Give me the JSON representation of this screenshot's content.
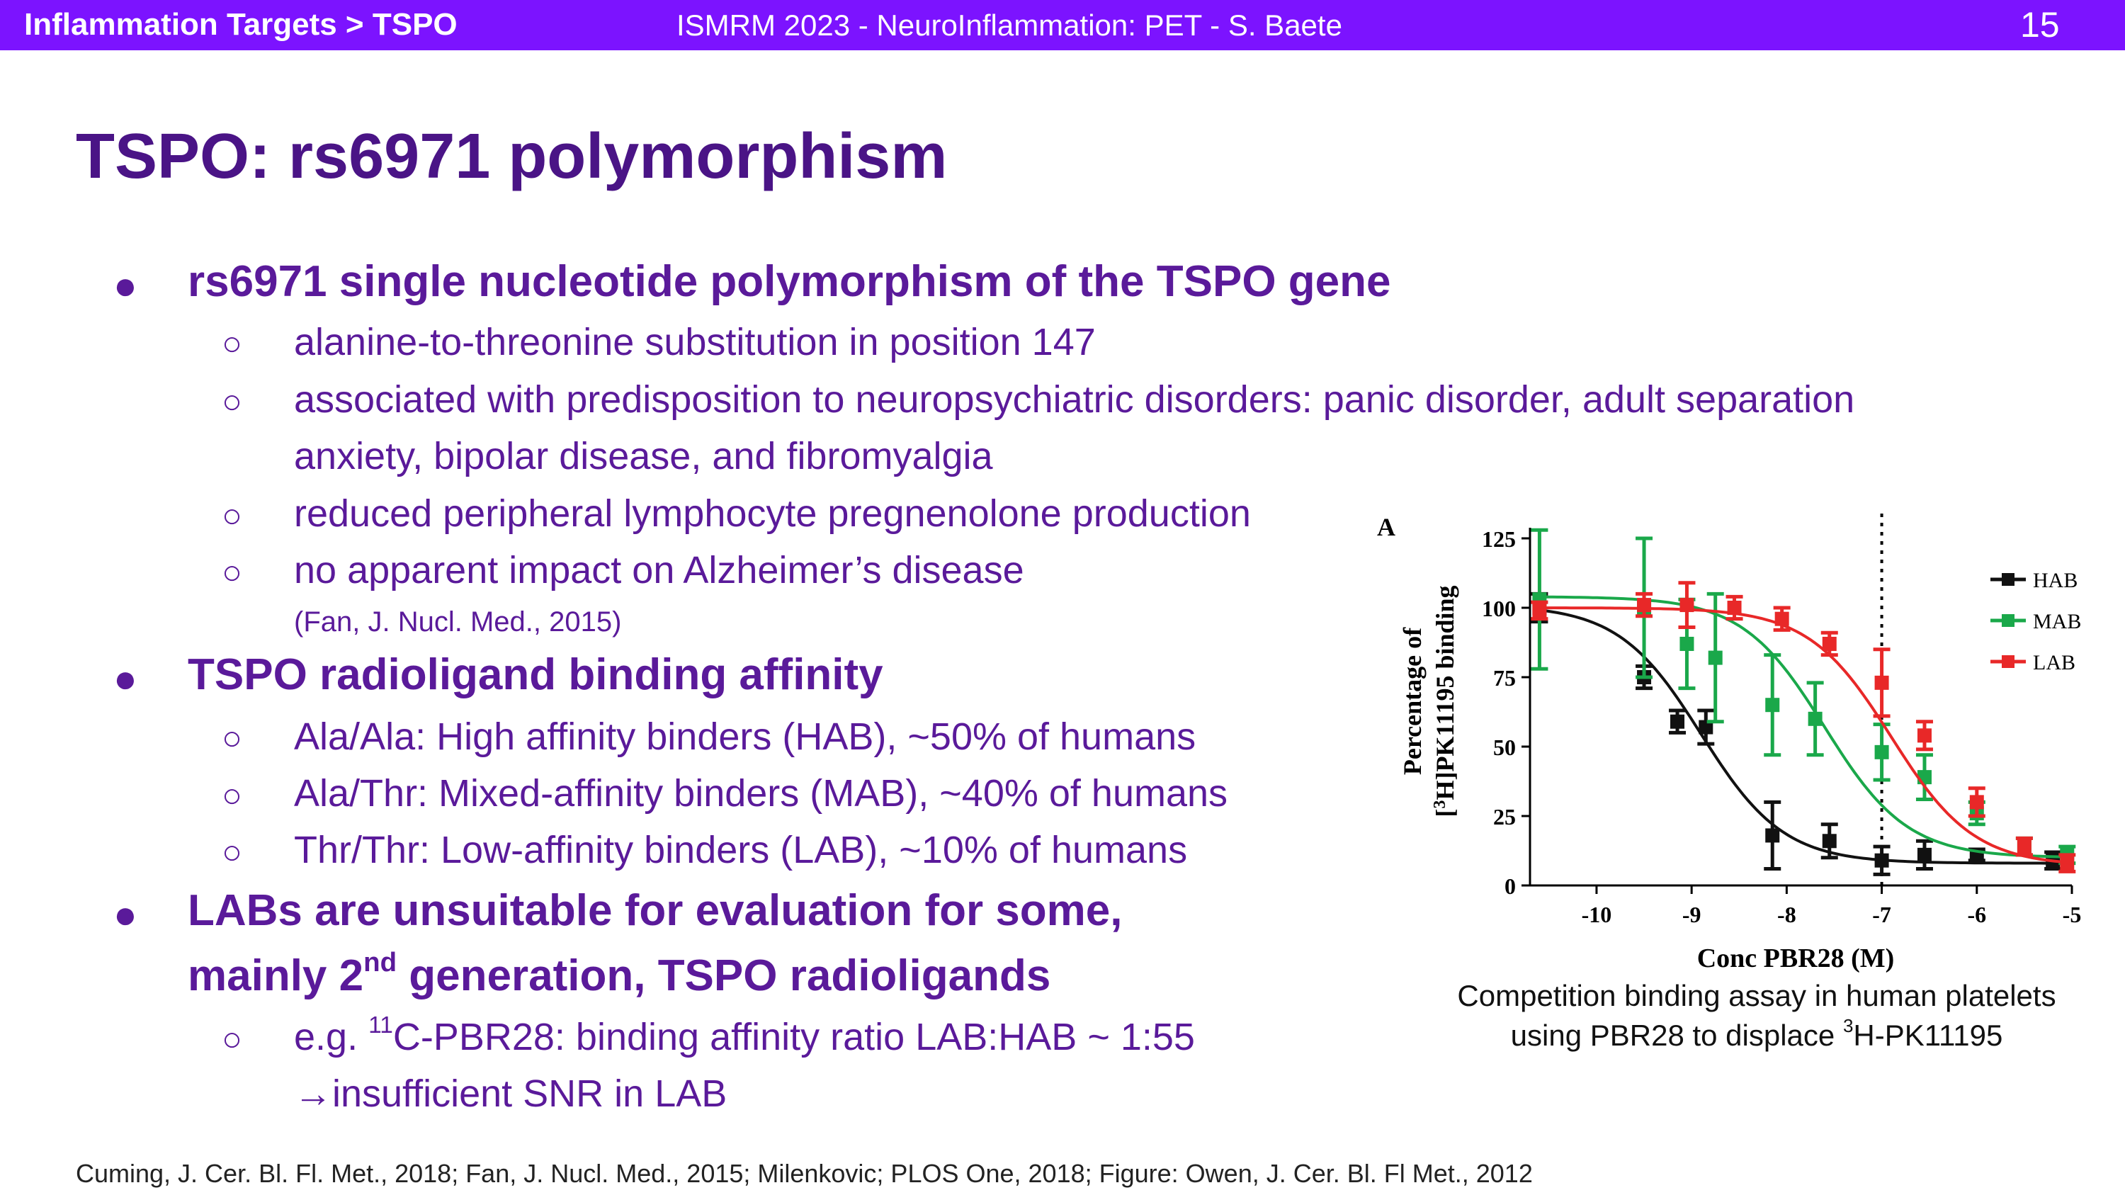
{
  "header": {
    "breadcrumb": "Inflammation Targets > TSPO",
    "conference": "ISMRM 2023 - NeuroInflammation: PET - S. Baete",
    "slide_number": "15"
  },
  "title": "TSPO: rs6971 polymorphism",
  "content": {
    "b1": "rs6971 single nucleotide polymorphism of the TSPO gene",
    "b1_s1": "alanine-to-threonine substitution in position 147",
    "b1_s2a": "associated with predisposition to neuropsychiatric disorders: panic disorder, adult separation",
    "b1_s2b": "anxiety, bipolar disease, and fibromyalgia",
    "b1_s3": "reduced peripheral lymphocyte pregnenolone production",
    "b1_s4": "no apparent impact on Alzheimer’s disease",
    "b1_ref": "(Fan, J. Nucl. Med., 2015)",
    "b2": "TSPO radioligand binding affinity",
    "b2_s1": "Ala/Ala:  High affinity binders (HAB), ~50% of humans",
    "b2_s2": "Ala/Thr:  Mixed-affinity binders (MAB), ~40% of humans",
    "b2_s3": "Thr/Thr:  Low-affinity binders (LAB), ~10% of humans",
    "b3_l1": "LABs are unsuitable for evaluation for some,",
    "b3_l2_pre": "mainly 2",
    "b3_l2_sup": "nd",
    "b3_l2_post": " generation, TSPO radioligands",
    "b3_s1_pre": "e.g. ",
    "b3_s1_sup": "11",
    "b3_s1_post": "C-PBR28: binding affinity ratio LAB:HAB ~ 1:55",
    "b3_s2": "→insufficient SNR in LAB"
  },
  "caption": {
    "line1": "Competition binding assay in human platelets",
    "line2_pre": "using PBR28 to displace ",
    "line2_sup": "3",
    "line2_post": "H-PK11195"
  },
  "footer": "Cuming, J. Cer. Bl. Fl. Met., 2018; Fan, J. Nucl. Med., 2015; Milenkovic; PLOS One, 2018; Figure: Owen, J. Cer. Bl. Fl Met., 2012",
  "chart_data": {
    "type": "scatter",
    "panel_label": "A",
    "xlabel": "Conc PBR28 (M)",
    "ylabel_line1": "Percentage of",
    "ylabel_line2_pre": "[",
    "ylabel_line2_sup": "3",
    "ylabel_line2_post": "H]PK11195 binding",
    "xlim": [
      -10.7,
      -5
    ],
    "ylim": [
      0,
      125
    ],
    "x_ticks": [
      -10,
      -9,
      -8,
      -7,
      -6,
      -5
    ],
    "y_ticks": [
      0,
      25,
      50,
      75,
      100,
      125
    ],
    "reference_line_x": -7,
    "legend_position": "top-right",
    "series": [
      {
        "name": "HAB",
        "color": "#111111",
        "ic50_log": -8.9,
        "x": [
          -10.6,
          -9.5,
          -9.15,
          -8.85,
          -8.15,
          -7.55,
          -7.0,
          -6.55,
          -6.0,
          -5.2
        ],
        "y": [
          100,
          75,
          59,
          57,
          18,
          16,
          9,
          11,
          11,
          9
        ],
        "err": [
          5,
          4,
          4,
          6,
          12,
          6,
          5,
          5,
          2,
          3
        ]
      },
      {
        "name": "MAB",
        "color": "#1aa84a",
        "ic50_log": -7.6,
        "x": [
          -10.6,
          -9.5,
          -9.05,
          -8.75,
          -8.15,
          -7.7,
          -7.0,
          -6.55,
          -6.0,
          -5.5,
          -5.05
        ],
        "y": [
          103,
          100,
          87,
          82,
          65,
          60,
          48,
          39,
          26,
          14,
          11
        ],
        "err": [
          25,
          25,
          16,
          23,
          18,
          13,
          10,
          8,
          4,
          3,
          3
        ]
      },
      {
        "name": "LAB",
        "color": "#e82828",
        "ic50_log": -6.9,
        "x": [
          -10.6,
          -9.5,
          -9.05,
          -8.55,
          -8.05,
          -7.55,
          -7.0,
          -6.55,
          -6.0,
          -5.5,
          -5.05
        ],
        "y": [
          99,
          101,
          101,
          100,
          96,
          87,
          73,
          54,
          30,
          14,
          8
        ],
        "err": [
          3,
          4,
          8,
          4,
          4,
          4,
          12,
          5,
          5,
          3,
          3
        ]
      }
    ]
  }
}
